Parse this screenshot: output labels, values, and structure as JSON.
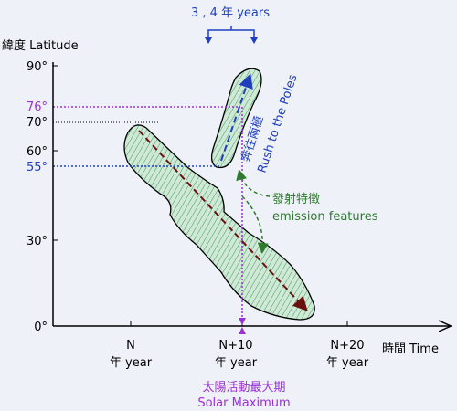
{
  "period_label": "3 , 4 年 years",
  "y_axis": {
    "title": "緯度 Latitude",
    "ticks": [
      "90°",
      "60°",
      "30°",
      "0°"
    ]
  },
  "x_axis": {
    "title": "時間 Time",
    "ticks": [
      {
        "label": "N",
        "unit": "年 year"
      },
      {
        "label": "N+10",
        "unit": "年 year"
      },
      {
        "label": "N+20",
        "unit": "年 year"
      }
    ]
  },
  "reference_latitudes": [
    "76°",
    "70°",
    "55°"
  ],
  "rush_label": {
    "zh": "奔往兩極",
    "en": "Rush to the Poles"
  },
  "emission_label": {
    "zh": "發射特徵",
    "en": "emission features"
  },
  "solar_maximum": {
    "zh": "太陽活動最大期",
    "en": "Solar Maximum"
  }
}
